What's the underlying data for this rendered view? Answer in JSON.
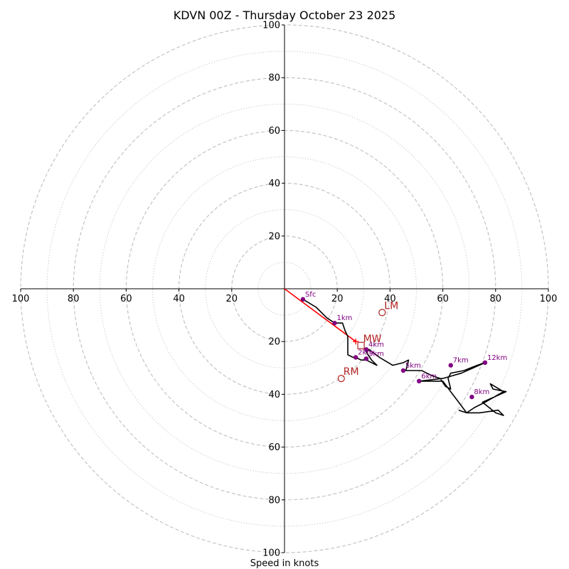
{
  "chart_data": {
    "type": "scatter",
    "subtype": "hodograph",
    "title": "KDVN 00Z - Thursday October 23 2025",
    "xlabel": "Speed in knots",
    "ylabel": "",
    "xlim": [
      -100,
      100
    ],
    "ylim": [
      -100,
      100
    ],
    "ring_major_step": 20,
    "ring_minor_step": 10,
    "ticks": {
      "x": [
        {
          "value": -100,
          "label": "100"
        },
        {
          "value": -80,
          "label": "80"
        },
        {
          "value": -60,
          "label": "60"
        },
        {
          "value": -40,
          "label": "40"
        },
        {
          "value": -20,
          "label": "20"
        },
        {
          "value": 20,
          "label": "20"
        },
        {
          "value": 40,
          "label": "40"
        },
        {
          "value": 60,
          "label": "60"
        },
        {
          "value": 80,
          "label": "80"
        },
        {
          "value": 100,
          "label": "100"
        }
      ],
      "y": [
        {
          "value": 100,
          "label": "100"
        },
        {
          "value": 80,
          "label": "80"
        },
        {
          "value": 60,
          "label": "60"
        },
        {
          "value": 40,
          "label": "40"
        },
        {
          "value": 20,
          "label": "20"
        },
        {
          "value": -20,
          "label": "20"
        },
        {
          "value": -40,
          "label": "40"
        },
        {
          "value": -60,
          "label": "60"
        },
        {
          "value": -80,
          "label": "80"
        },
        {
          "value": -100,
          "label": "100"
        }
      ]
    },
    "trace": [
      [
        7,
        -4
      ],
      [
        12,
        -7
      ],
      [
        16,
        -11
      ],
      [
        19,
        -13
      ],
      [
        22,
        -13
      ],
      [
        23,
        -16
      ],
      [
        24,
        -18
      ],
      [
        24,
        -19
      ],
      [
        24,
        -21
      ],
      [
        24,
        -22
      ],
      [
        24,
        -24
      ],
      [
        24,
        -25
      ],
      [
        26,
        -26
      ],
      [
        27,
        -26
      ],
      [
        29,
        -27
      ],
      [
        31,
        -27
      ],
      [
        35,
        -29
      ],
      [
        33,
        -27
      ],
      [
        31,
        -24
      ],
      [
        32,
        -23
      ],
      [
        36,
        -26
      ],
      [
        41,
        -29
      ],
      [
        45,
        -28
      ],
      [
        47,
        -27
      ],
      [
        46,
        -31
      ],
      [
        49,
        -31
      ],
      [
        52,
        -31
      ],
      [
        54,
        -32
      ],
      [
        56,
        -33
      ],
      [
        59,
        -34
      ],
      [
        61,
        -37
      ],
      [
        63,
        -38
      ],
      [
        62,
        -34
      ],
      [
        63,
        -32
      ],
      [
        68,
        -31
      ],
      [
        73,
        -29
      ],
      [
        76,
        -28
      ],
      [
        67,
        -32
      ],
      [
        60,
        -34
      ],
      [
        51,
        -35
      ],
      [
        57,
        -35
      ],
      [
        60,
        -35
      ],
      [
        63,
        -39
      ],
      [
        66,
        -43
      ],
      [
        69,
        -47
      ],
      [
        72,
        -45
      ],
      [
        76,
        -43
      ],
      [
        83,
        -39
      ],
      [
        78,
        -36
      ],
      [
        79,
        -38
      ],
      [
        84,
        -39
      ],
      [
        75,
        -43
      ],
      [
        75,
        -43
      ],
      [
        80,
        -47
      ],
      [
        83,
        -48
      ],
      [
        81,
        -46
      ],
      [
        74,
        -47
      ],
      [
        69,
        -47
      ],
      [
        66,
        -46
      ]
    ],
    "height_markers": [
      {
        "label": "Sfc",
        "u": 7,
        "v": -4
      },
      {
        "label": "1km",
        "u": 19,
        "v": -13
      },
      {
        "label": "2km",
        "u": 27,
        "v": -26
      },
      {
        "label": "3km",
        "u": 31,
        "v": -26.5
      },
      {
        "label": "4km",
        "u": 31,
        "v": -23
      },
      {
        "label": "5km",
        "u": 45,
        "v": -31
      },
      {
        "label": "6km",
        "u": 51,
        "v": -35
      },
      {
        "label": "7km",
        "u": 63,
        "v": -29
      },
      {
        "label": "8km",
        "u": 71,
        "v": -41
      },
      {
        "label": "12km",
        "u": 76,
        "v": -28
      }
    ],
    "motion_vector": {
      "from": [
        0,
        0
      ],
      "to": [
        27,
        -20
      ]
    },
    "storm_motions": [
      {
        "label": "LM",
        "u": 37,
        "v": -9,
        "marker": "circle"
      },
      {
        "label": "MW",
        "u": 29,
        "v": -21.5,
        "marker": "square"
      },
      {
        "label": "RM",
        "u": 21.5,
        "v": -34,
        "marker": "circle"
      }
    ],
    "colors": {
      "trace": "#000000",
      "marker": "#800080",
      "motion_vector": "#ff0000",
      "storm_motion": "#b22222",
      "grid": "#bfbfbf",
      "axis": "#000000"
    }
  }
}
